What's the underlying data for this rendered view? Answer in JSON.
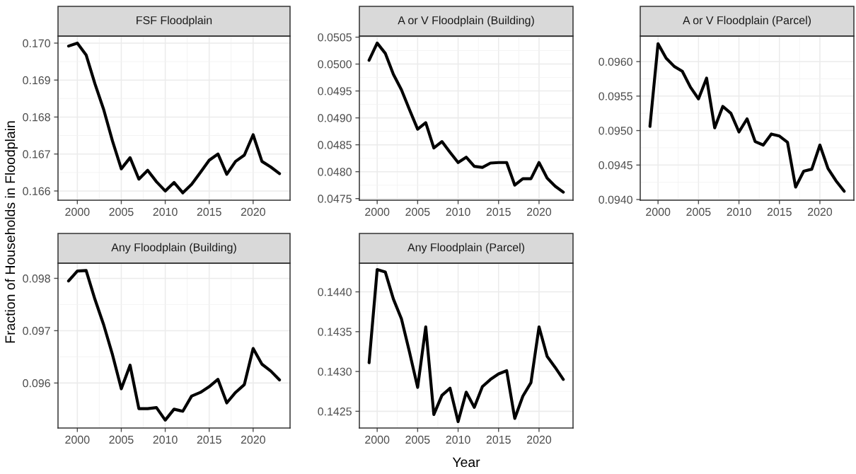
{
  "chart_data": [
    {
      "type": "line",
      "title": "FSF Floodplain",
      "ylabel": "Fraction of Households in Floodplain",
      "x": [
        1999,
        2000,
        2001,
        2002,
        2003,
        2004,
        2005,
        2006,
        2007,
        2008,
        2009,
        2010,
        2011,
        2012,
        2013,
        2014,
        2015,
        2016,
        2017,
        2018,
        2019,
        2020,
        2021,
        2022,
        2023
      ],
      "values": [
        0.16992,
        0.17,
        0.16968,
        0.1689,
        0.1682,
        0.16735,
        0.1666,
        0.1669,
        0.16632,
        0.16656,
        0.16625,
        0.166,
        0.16623,
        0.16595,
        0.16618,
        0.1665,
        0.16683,
        0.167,
        0.16645,
        0.1668,
        0.16697,
        0.16752,
        0.1668,
        0.16665,
        0.16647
      ],
      "color": "#000000",
      "xlim": [
        1997.8,
        2024.2
      ],
      "xticks": [
        2000,
        2005,
        2010,
        2015,
        2020
      ],
      "ylim": [
        0.16575,
        0.17019
      ],
      "yticks": [
        {
          "value": 0.166,
          "label": "0.166"
        },
        {
          "value": 0.167,
          "label": "0.167"
        },
        {
          "value": 0.168,
          "label": "0.168"
        },
        {
          "value": 0.169,
          "label": "0.169"
        },
        {
          "value": 0.17,
          "label": "0.170"
        }
      ],
      "grid": true
    },
    {
      "type": "line",
      "title": "A or V Floodplain (Building)",
      "x": [
        1999,
        2000,
        2001,
        2002,
        2003,
        2004,
        2005,
        2006,
        2007,
        2008,
        2009,
        2010,
        2011,
        2012,
        2013,
        2014,
        2015,
        2016,
        2017,
        2018,
        2019,
        2020,
        2021,
        2022,
        2023
      ],
      "values": [
        0.05007,
        0.05039,
        0.0502,
        0.04981,
        0.04952,
        0.04915,
        0.04879,
        0.04891,
        0.04844,
        0.04856,
        0.04836,
        0.04817,
        0.04827,
        0.0481,
        0.04808,
        0.04816,
        0.04817,
        0.04817,
        0.04775,
        0.04787,
        0.04787,
        0.04817,
        0.04788,
        0.04773,
        0.04762
      ],
      "color": "#000000",
      "xlim": [
        1997.8,
        2024.2
      ],
      "xticks": [
        2000,
        2005,
        2010,
        2015,
        2020
      ],
      "ylim": [
        0.04747,
        0.05052
      ],
      "yticks": [
        {
          "value": 0.0475,
          "label": "0.0475"
        },
        {
          "value": 0.048,
          "label": "0.0480"
        },
        {
          "value": 0.0485,
          "label": "0.0485"
        },
        {
          "value": 0.049,
          "label": "0.0490"
        },
        {
          "value": 0.0495,
          "label": "0.0495"
        },
        {
          "value": 0.05,
          "label": "0.0500"
        },
        {
          "value": 0.0505,
          "label": "0.0505"
        }
      ],
      "grid": true
    },
    {
      "type": "line",
      "title": "A or V Floodplain (Parcel)",
      "x": [
        1999,
        2000,
        2001,
        2002,
        2003,
        2004,
        2005,
        2006,
        2007,
        2008,
        2009,
        2010,
        2011,
        2012,
        2013,
        2014,
        2015,
        2016,
        2017,
        2018,
        2019,
        2020,
        2021,
        2022,
        2023
      ],
      "values": [
        0.09506,
        0.09626,
        0.09605,
        0.09593,
        0.09586,
        0.09563,
        0.09546,
        0.09576,
        0.09504,
        0.09535,
        0.09525,
        0.09498,
        0.09517,
        0.09484,
        0.09479,
        0.09495,
        0.09492,
        0.09483,
        0.09418,
        0.09441,
        0.09444,
        0.09479,
        0.09445,
        0.09427,
        0.09412
      ],
      "color": "#000000",
      "xlim": [
        1997.8,
        2024.2
      ],
      "xticks": [
        2000,
        2005,
        2010,
        2015,
        2020
      ],
      "ylim": [
        0.09399,
        0.09637
      ],
      "yticks": [
        {
          "value": 0.094,
          "label": "0.0940"
        },
        {
          "value": 0.0945,
          "label": "0.0945"
        },
        {
          "value": 0.095,
          "label": "0.0950"
        },
        {
          "value": 0.0955,
          "label": "0.0955"
        },
        {
          "value": 0.096,
          "label": "0.0960"
        }
      ],
      "grid": true
    },
    {
      "type": "line",
      "title": "Any Floodplain (Building)",
      "x": [
        1999,
        2000,
        2001,
        2002,
        2003,
        2004,
        2005,
        2006,
        2007,
        2008,
        2009,
        2010,
        2011,
        2012,
        2013,
        2014,
        2015,
        2016,
        2017,
        2018,
        2019,
        2020,
        2021,
        2022,
        2023
      ],
      "values": [
        0.09795,
        0.09814,
        0.09815,
        0.0976,
        0.09711,
        0.09654,
        0.09589,
        0.09634,
        0.09551,
        0.09551,
        0.09553,
        0.09529,
        0.0955,
        0.09546,
        0.09575,
        0.09582,
        0.09593,
        0.09607,
        0.09562,
        0.09582,
        0.09597,
        0.09666,
        0.09636,
        0.09623,
        0.09606
      ],
      "color": "#000000",
      "xlim": [
        1997.8,
        2024.2
      ],
      "xticks": [
        2000,
        2005,
        2010,
        2015,
        2020
      ],
      "ylim": [
        0.09514,
        0.09829
      ],
      "yticks": [
        {
          "value": 0.096,
          "label": "0.096"
        },
        {
          "value": 0.097,
          "label": "0.097"
        },
        {
          "value": 0.098,
          "label": "0.098"
        }
      ],
      "grid": true
    },
    {
      "type": "line",
      "title": "Any Floodplain (Parcel)",
      "xlabel": "Year",
      "x": [
        1999,
        2000,
        2001,
        2002,
        2003,
        2004,
        2005,
        2006,
        2007,
        2008,
        2009,
        2010,
        2011,
        2012,
        2013,
        2014,
        2015,
        2016,
        2017,
        2018,
        2019,
        2020,
        2021,
        2022,
        2023
      ],
      "values": [
        0.14311,
        0.14428,
        0.14425,
        0.14391,
        0.14366,
        0.14324,
        0.1428,
        0.14356,
        0.14246,
        0.1427,
        0.14279,
        0.14237,
        0.14274,
        0.14255,
        0.14281,
        0.1429,
        0.14297,
        0.14301,
        0.14241,
        0.14269,
        0.14286,
        0.14356,
        0.14319,
        0.14305,
        0.1429
      ],
      "color": "#000000",
      "xlim": [
        1997.8,
        2024.2
      ],
      "xticks": [
        2000,
        2005,
        2010,
        2015,
        2020
      ],
      "ylim": [
        0.14229,
        0.14436
      ],
      "yticks": [
        {
          "value": 0.1425,
          "label": "0.1425"
        },
        {
          "value": 0.143,
          "label": "0.1430"
        },
        {
          "value": 0.1435,
          "label": "0.1435"
        },
        {
          "value": 0.144,
          "label": "0.1440"
        }
      ],
      "grid": true
    }
  ]
}
